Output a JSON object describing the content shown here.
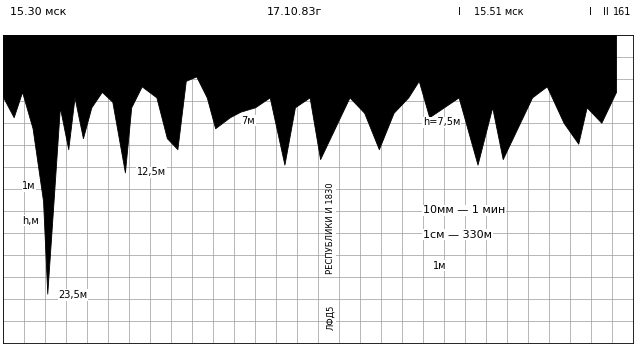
{
  "chart_data": {
    "type": "area",
    "title": "17.10.83г",
    "color": "#000000",
    "x": [
      0,
      0.5,
      0.9,
      1.4,
      1.9,
      2.1,
      2.4,
      2.7,
      3.1,
      3.4,
      3.8,
      4.2,
      4.7,
      5.2,
      5.8,
      6.1,
      6.6,
      7.3,
      7.8,
      8.3,
      8.7,
      9.2,
      9.7,
      10.1,
      10.8,
      11.3,
      12.0,
      12.7,
      13.4,
      13.9,
      14.6,
      15.1,
      15.8,
      16.5,
      17.2,
      17.9,
      18.6,
      19.3,
      19.8,
      20.3,
      21.0,
      21.7,
      22.6,
      23.3,
      23.8,
      24.5,
      25.2,
      25.9,
      26.7,
      27.4,
      27.8,
      28.5,
      29.2
    ],
    "values": [
      5.7,
      7.5,
      5.2,
      8.5,
      15.1,
      23.5,
      15.1,
      6.6,
      10.4,
      5.7,
      9.4,
      6.6,
      5.2,
      6.1,
      12.5,
      6.6,
      4.7,
      5.7,
      9.4,
      10.4,
      4.2,
      3.8,
      5.7,
      8.5,
      7.5,
      7.0,
      6.6,
      5.7,
      11.8,
      6.6,
      5.7,
      11.3,
      8.5,
      5.7,
      7.1,
      10.4,
      7.1,
      5.7,
      4.2,
      7.5,
      6.6,
      5.7,
      11.8,
      6.6,
      11.3,
      8.5,
      5.7,
      4.7,
      8.0,
      9.9,
      6.6,
      8.0,
      5.2
    ],
    "xlim": [
      0,
      30
    ],
    "xticks": [
      0,
      1,
      2,
      3,
      4,
      5,
      6,
      7,
      8,
      9,
      10,
      11,
      12,
      13,
      14,
      15,
      16,
      17,
      18,
      19,
      20,
      21,
      22,
      23,
      24,
      25,
      26,
      27,
      28,
      29,
      30
    ],
    "ylim": [
      28,
      0
    ],
    "yticks": [
      0,
      2,
      4,
      6,
      8,
      10,
      12,
      14,
      16,
      18,
      20,
      22,
      24,
      26,
      28
    ],
    "grid": true,
    "tick_labels": false,
    "annotations": [
      "15.30 мск",
      "I",
      "15.51 мск",
      "I",
      "II",
      "161",
      "1м",
      "h,м",
      "23,5м",
      "12,5м",
      "7м",
      "h=7,5м",
      "10мм — 1 мин",
      "1см — 330м",
      "1м",
      "РЕСПУБЛИКИ И 1830",
      "ЛФД5"
    ]
  }
}
